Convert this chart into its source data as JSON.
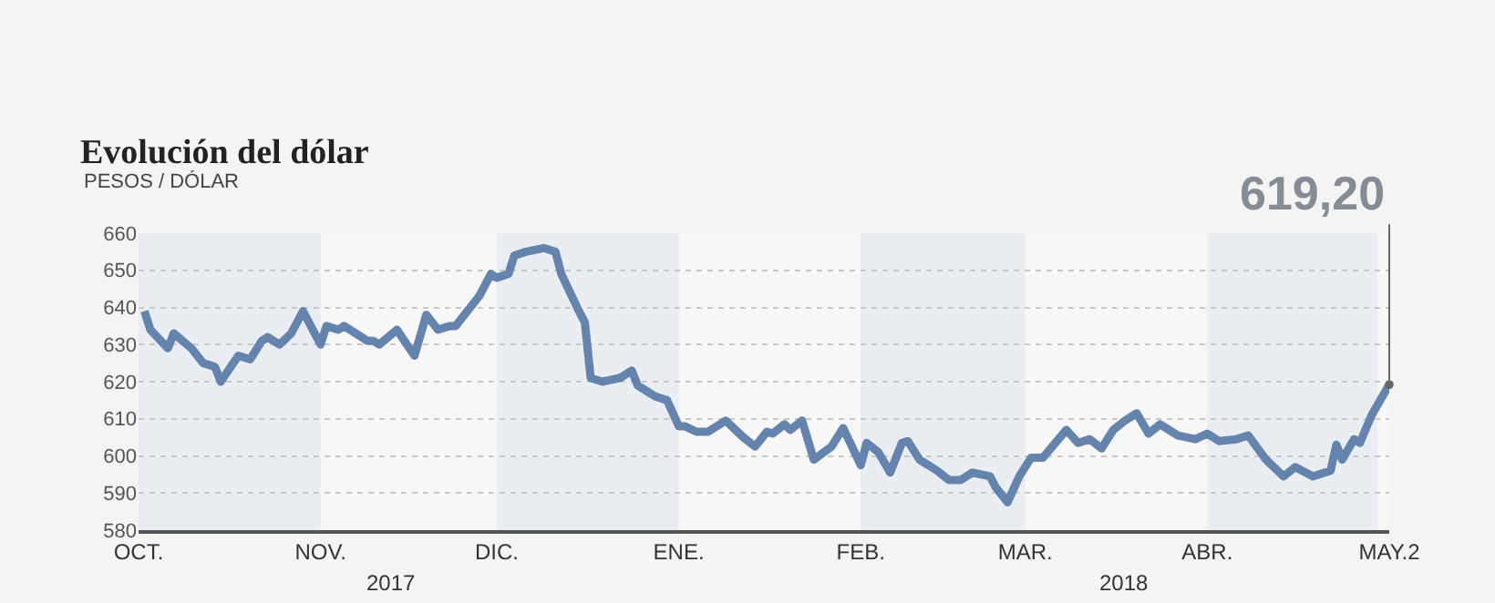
{
  "chart_data": {
    "type": "line",
    "title": "Evolución del dólar",
    "subtitle": "PESOS / DÓLAR",
    "x": [
      "2017-10-02",
      "2017-10-03",
      "2017-10-06",
      "2017-10-07",
      "2017-10-10",
      "2017-10-12",
      "2017-10-14",
      "2017-10-15",
      "2017-10-18",
      "2017-10-20",
      "2017-10-22",
      "2017-10-23",
      "2017-10-25",
      "2017-10-27",
      "2017-10-29",
      "2017-11-01",
      "2017-11-02",
      "2017-11-04",
      "2017-11-05",
      "2017-11-08",
      "2017-11-09",
      "2017-11-10",
      "2017-11-11",
      "2017-11-14",
      "2017-11-17",
      "2017-11-19",
      "2017-11-21",
      "2017-11-23",
      "2017-11-24",
      "2017-11-26",
      "2017-11-28",
      "2017-11-30",
      "2017-12-01",
      "2017-12-03",
      "2017-12-04",
      "2017-12-06",
      "2017-12-09",
      "2017-12-11",
      "2017-12-12",
      "2017-12-15",
      "2017-12-16",
      "2017-12-17",
      "2017-12-19",
      "2017-12-22",
      "2017-12-24",
      "2017-12-25",
      "2017-12-28",
      "2017-12-30",
      "2018-01-01",
      "2018-01-02",
      "2018-01-04",
      "2018-01-06",
      "2018-01-09",
      "2018-01-12",
      "2018-01-14",
      "2018-01-16",
      "2018-01-17",
      "2018-01-19",
      "2018-01-20",
      "2018-01-22",
      "2018-01-24",
      "2018-01-27",
      "2018-01-29",
      "2018-02-01",
      "2018-02-02",
      "2018-02-04",
      "2018-02-06",
      "2018-02-08",
      "2018-02-09",
      "2018-02-11",
      "2018-02-14",
      "2018-02-16",
      "2018-02-18",
      "2018-02-20",
      "2018-02-23",
      "2018-02-24",
      "2018-02-26",
      "2018-02-28",
      "2018-03-02",
      "2018-03-04",
      "2018-03-08",
      "2018-03-10",
      "2018-03-12",
      "2018-03-14",
      "2018-03-16",
      "2018-03-18",
      "2018-03-20",
      "2018-03-22",
      "2018-03-24",
      "2018-03-27",
      "2018-03-30",
      "2018-04-01",
      "2018-04-03",
      "2018-04-06",
      "2018-04-08",
      "2018-04-11",
      "2018-04-14",
      "2018-04-16",
      "2018-04-19",
      "2018-04-22",
      "2018-04-23",
      "2018-04-24",
      "2018-04-26",
      "2018-04-27",
      "2018-04-29",
      "2018-05-02"
    ],
    "series": [
      {
        "color": "#6584ad",
        "values": [
          639,
          634,
          629,
          633,
          629,
          625,
          624,
          620,
          627,
          626,
          631,
          632,
          630,
          633,
          639,
          630,
          635,
          634,
          635,
          632,
          631,
          631,
          630,
          634,
          627,
          638,
          634,
          635,
          635,
          639,
          643,
          649,
          648,
          649,
          654,
          655,
          656,
          655,
          649,
          639,
          636,
          621,
          620,
          621,
          623,
          619,
          616,
          615,
          608,
          608,
          606.5,
          606.5,
          609.5,
          605,
          602.5,
          606.5,
          606,
          608.5,
          607,
          609.5,
          599,
          602.5,
          607.5,
          597.5,
          603.5,
          601,
          595.5,
          603.5,
          604,
          599,
          596,
          593.5,
          593.5,
          595.5,
          594.5,
          591.5,
          587.5,
          594.5,
          599.5,
          599.5,
          607,
          603.5,
          604.5,
          602,
          607,
          609.5,
          611.5,
          606,
          608.5,
          605.5,
          604.5,
          606,
          604,
          604.5,
          605.5,
          599,
          594.5,
          597,
          594.5,
          596,
          603,
          599,
          604.5,
          603.5,
          611,
          619.2
        ]
      }
    ],
    "xlim": [
      "2017-10-01",
      "2018-05-02"
    ],
    "xticks": [
      {
        "value": "2017-10-01",
        "label": "OCT."
      },
      {
        "value": "2017-11-01",
        "label": "NOV."
      },
      {
        "value": "2017-12-01",
        "label": "DIC."
      },
      {
        "value": "2018-01-01",
        "label": "ENE."
      },
      {
        "value": "2018-02-01",
        "label": "FEB."
      },
      {
        "value": "2018-03-01",
        "label": "MAR."
      },
      {
        "value": "2018-04-01",
        "label": "ABR."
      },
      {
        "value": "2018-05-02",
        "label": "MAY.2"
      }
    ],
    "ylim": [
      580,
      660
    ],
    "yticks": [
      580,
      590,
      600,
      610,
      620,
      630,
      640,
      650,
      660
    ],
    "grid": "y",
    "marker": "none",
    "line_style": "solid",
    "bands": [
      {
        "axis": "x",
        "from": "2017-10-01",
        "to": "2017-11-01",
        "color": "#eaedf1"
      },
      {
        "axis": "x",
        "from": "2017-12-01",
        "to": "2018-01-01",
        "color": "#eaedf1"
      },
      {
        "axis": "x",
        "from": "2018-02-01",
        "to": "2018-03-01",
        "color": "#eaedf1"
      },
      {
        "axis": "x",
        "from": "2018-04-01",
        "to": "2018-04-30",
        "color": "#eaedf1"
      }
    ],
    "annotations": [
      {
        "text": "619,20",
        "x": "2018-05-02",
        "y": 619.2
      },
      "2017",
      "2018"
    ]
  }
}
